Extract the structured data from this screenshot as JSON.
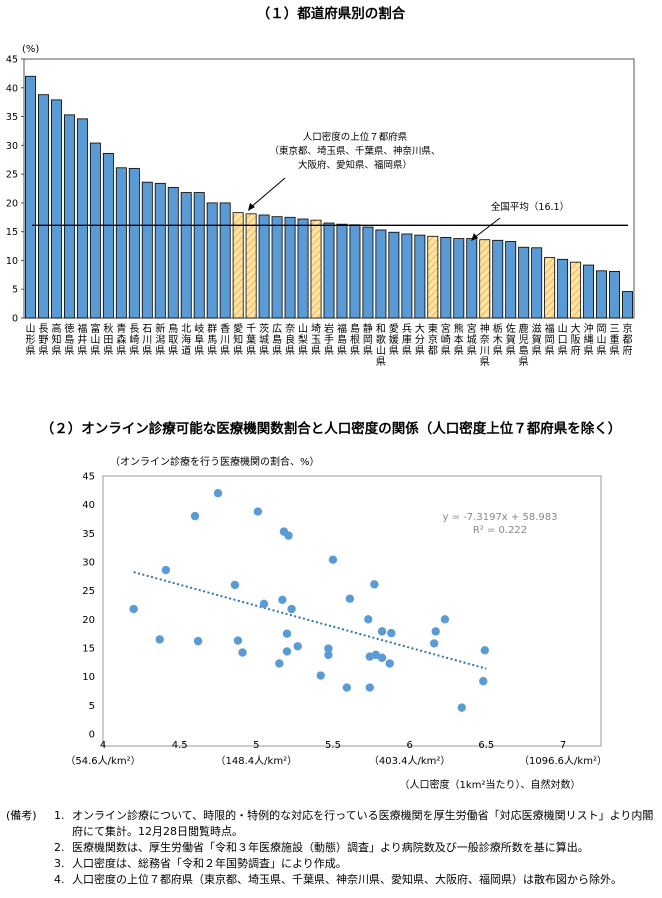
{
  "chart1": {
    "title": "（１）都道府県別の割合",
    "unit": "(%)",
    "type": "bar",
    "ylim": [
      0,
      45
    ],
    "yticks": [
      0,
      5,
      10,
      15,
      20,
      25,
      30,
      35,
      40,
      45
    ],
    "average_value": 16.1,
    "annotation_top7": [
      "人口密度の上位７都府県",
      "（東京都、埼玉県、千葉県、神奈川県、",
      "大阪府、愛知県、福岡県）"
    ],
    "annotation_avg": "全国平均（16.1）",
    "bar_colors": {
      "normal": "#5B9BD5",
      "top7_fill": "#FFE699",
      "top7_stripe": "#F4B183"
    },
    "chart_data": {
      "type": "bar",
      "categories": [
        "山形県",
        "長野県",
        "高知県",
        "徳島県",
        "福井県",
        "富山県",
        "秋田県",
        "青森県",
        "長崎県",
        "石川県",
        "新潟県",
        "鳥取県",
        "北海道",
        "岐阜県",
        "群馬県",
        "香川県",
        "愛知県",
        "千葉県",
        "茨城県",
        "広島県",
        "奈良県",
        "山梨県",
        "埼玉県",
        "岩手県",
        "福島県",
        "島根県",
        "静岡県",
        "和歌山県",
        "愛媛県",
        "兵庫県",
        "大分県",
        "東京都",
        "宮崎県",
        "熊本県",
        "宮城県",
        "神奈川県",
        "栃木県",
        "佐賀県",
        "鹿児島県",
        "滋賀県",
        "福岡県",
        "山口県",
        "大阪府",
        "沖縄県",
        "岡山県",
        "三重県",
        "京都府"
      ],
      "values": [
        42.0,
        38.8,
        37.9,
        35.3,
        34.6,
        30.4,
        28.6,
        26.1,
        26.0,
        23.6,
        23.4,
        22.7,
        21.8,
        21.8,
        20.0,
        20.0,
        18.3,
        18.1,
        17.9,
        17.6,
        17.5,
        17.2,
        17.0,
        16.5,
        16.3,
        16.2,
        15.8,
        15.3,
        14.9,
        14.6,
        14.4,
        14.2,
        14.0,
        13.8,
        13.8,
        13.6,
        13.5,
        13.3,
        12.3,
        12.2,
        10.5,
        10.2,
        9.7,
        9.2,
        8.2,
        8.1,
        4.6
      ],
      "top7": [
        "愛知県",
        "千葉県",
        "埼玉県",
        "東京都",
        "神奈川県",
        "福岡県",
        "大阪府"
      ]
    }
  },
  "chart2": {
    "title": "（２）オンライン診療可能な医療機関数割合と人口密度の関係（人口密度上位７都府県を除く）",
    "ylabel": "（オンライン診療を行う医療機関の割合、%）",
    "xlabel": "（人口密度（1km²当たり）、自然対数）",
    "equation": "y = -7.3197x + 58.983",
    "r2": "R² = 0.222",
    "x_sub_labels": [
      {
        "x": 4,
        "text": "（54.6人/km²）"
      },
      {
        "x": 5,
        "text": "（148.4人/km²）"
      },
      {
        "x": 6,
        "text": "（403.4人/km²）"
      },
      {
        "x": 7,
        "text": "（1096.6人/km²）"
      }
    ],
    "xticks": [
      "4",
      "4.5",
      "5",
      "5.5",
      "6",
      "6.5",
      "7"
    ],
    "yticks": [
      "0",
      "5",
      "10",
      "15",
      "20",
      "25",
      "30",
      "35",
      "40",
      "45"
    ],
    "colors": {
      "point": "#5B9BD5",
      "trend": "#2E75B6"
    },
    "chart_data": {
      "type": "scatter",
      "xlim": [
        4,
        7
      ],
      "ylim": [
        0,
        45
      ],
      "trendline": {
        "slope": -7.3197,
        "intercept": 58.983,
        "x_range": [
          4.2,
          6.5
        ]
      },
      "points": [
        [
          4.2,
          21.8
        ],
        [
          4.37,
          16.5
        ],
        [
          4.41,
          28.6
        ],
        [
          4.6,
          38.0
        ],
        [
          4.62,
          16.2
        ],
        [
          4.75,
          42.0
        ],
        [
          4.86,
          26.0
        ],
        [
          4.88,
          16.3
        ],
        [
          4.91,
          14.2
        ],
        [
          5.01,
          38.8
        ],
        [
          5.05,
          22.7
        ],
        [
          5.15,
          12.3
        ],
        [
          5.17,
          23.4
        ],
        [
          5.18,
          35.3
        ],
        [
          5.2,
          17.5
        ],
        [
          5.2,
          14.4
        ],
        [
          5.21,
          34.6
        ],
        [
          5.23,
          21.8
        ],
        [
          5.27,
          15.3
        ],
        [
          5.42,
          10.2
        ],
        [
          5.47,
          14.9
        ],
        [
          5.47,
          13.8
        ],
        [
          5.5,
          30.4
        ],
        [
          5.59,
          8.1
        ],
        [
          5.61,
          23.6
        ],
        [
          5.73,
          20.0
        ],
        [
          5.74,
          13.5
        ],
        [
          5.74,
          8.1
        ],
        [
          5.77,
          26.1
        ],
        [
          5.78,
          13.8
        ],
        [
          5.82,
          13.3
        ],
        [
          5.82,
          17.9
        ],
        [
          5.87,
          12.3
        ],
        [
          5.88,
          17.6
        ],
        [
          6.16,
          15.8
        ],
        [
          6.17,
          17.9
        ],
        [
          6.23,
          20.0
        ],
        [
          6.34,
          4.6
        ],
        [
          6.48,
          9.2
        ],
        [
          6.49,
          14.6
        ]
      ]
    }
  },
  "notes": {
    "head": "(備考)",
    "items": [
      {
        "num": "1.",
        "text": "オンライン診療について、時限的・特例的な対応を行っている医療機関を厚生労働省「対応医療機関リスト」より内閣府にて集計。12月28日閲覧時点。"
      },
      {
        "num": "2.",
        "text": "医療機関数は、厚生労働省「令和３年医療施設（動態）調査」より病院数及び一般診療所数を基に算出。"
      },
      {
        "num": "3.",
        "text": "人口密度は、総務省「令和２年国勢調査」により作成。"
      },
      {
        "num": "4.",
        "text": "人口密度の上位７都府県（東京都、埼玉県、千葉県、神奈川県、愛知県、大阪府、福岡県）は散布図から除外。"
      }
    ]
  }
}
